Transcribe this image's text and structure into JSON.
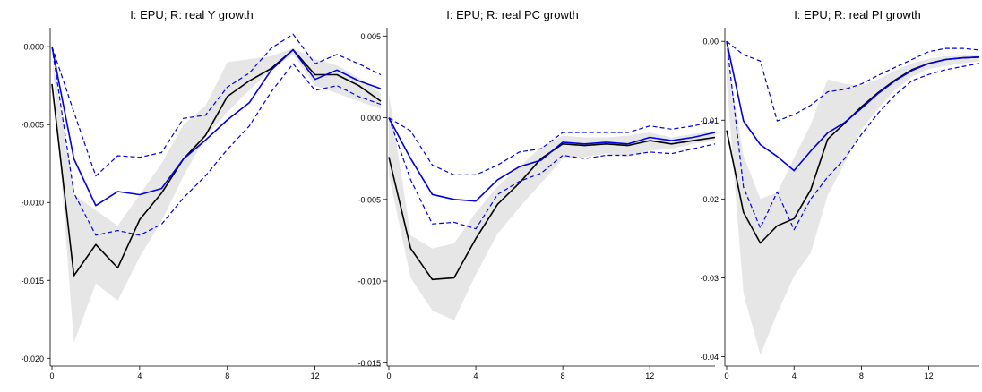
{
  "chart_data": [
    {
      "type": "line",
      "title": "I: EPU; R: real Y growth",
      "x": [
        0,
        1,
        2,
        3,
        4,
        5,
        6,
        7,
        8,
        9,
        10,
        11,
        12,
        13,
        14,
        15
      ],
      "xticks": [
        0,
        4,
        8,
        12
      ],
      "xlim": [
        0,
        15
      ],
      "ylim": [
        -0.0205,
        0.0011
      ],
      "yticks": [
        {
          "value": 0.0,
          "label": "0.000"
        },
        {
          "value": -0.005,
          "label": "-0.005"
        },
        {
          "value": -0.01,
          "label": "-0.010"
        },
        {
          "value": -0.015,
          "label": "-0.015"
        },
        {
          "value": -0.02,
          "label": "-0.020"
        }
      ],
      "band": {
        "lower": [
          -0.0005,
          -0.019,
          -0.0152,
          -0.0163,
          -0.0135,
          -0.0112,
          -0.0083,
          -0.0058,
          -0.0042,
          -0.0028,
          -0.0015,
          -0.0005,
          -0.0025,
          -0.003,
          -0.0035,
          -0.004
        ],
        "upper": [
          -0.0005,
          -0.0095,
          -0.0105,
          -0.0115,
          -0.0095,
          -0.0075,
          -0.005,
          -0.0038,
          -0.001,
          -0.0008,
          -0.0006,
          -0.0001,
          -0.0008,
          -0.0012,
          -0.002,
          -0.003
        ]
      },
      "series": [
        {
          "values": [
            -0.0024,
            -0.0147,
            -0.0127,
            -0.0142,
            -0.0111,
            -0.0094,
            -0.0072,
            -0.0057,
            -0.0032,
            -0.0022,
            -0.0014,
            -0.0002,
            -0.0018,
            -0.0018,
            -0.0025,
            -0.0035
          ],
          "color": "#000000",
          "dash": false
        },
        {
          "values": [
            0.0,
            -0.0072,
            -0.0102,
            -0.0093,
            -0.0095,
            -0.0091,
            -0.0072,
            -0.006,
            -0.0047,
            -0.0036,
            -0.0015,
            -0.0002,
            -0.0021,
            -0.0015,
            -0.0022,
            -0.0027
          ],
          "color": "#0000dd",
          "dash": false
        },
        {
          "values": [
            0.0,
            -0.0042,
            -0.0083,
            -0.007,
            -0.0071,
            -0.0068,
            -0.0046,
            -0.0044,
            -0.0026,
            -0.0017,
            -0.0001,
            0.0008,
            -0.0011,
            -0.0005,
            -0.0011,
            -0.0018
          ],
          "color": "#0000dd",
          "dash": true
        },
        {
          "values": [
            0.0,
            -0.0094,
            -0.0121,
            -0.0118,
            -0.0121,
            -0.0114,
            -0.0097,
            -0.0083,
            -0.0066,
            -0.0051,
            -0.0029,
            -0.0011,
            -0.0028,
            -0.0025,
            -0.0032,
            -0.0037
          ],
          "color": "#0000dd",
          "dash": true
        }
      ]
    },
    {
      "type": "line",
      "title": "I: EPU; R: real PC growth",
      "x": [
        0,
        1,
        2,
        3,
        4,
        5,
        6,
        7,
        8,
        9,
        10,
        11,
        12,
        13,
        14,
        15
      ],
      "xticks": [
        0,
        4,
        8,
        12
      ],
      "xlim": [
        0,
        15
      ],
      "ylim": [
        -0.0152,
        0.0054
      ],
      "yticks": [
        {
          "value": 0.005,
          "label": "0.005"
        },
        {
          "value": 0.0,
          "label": "0.000"
        },
        {
          "value": -0.005,
          "label": "-0.005"
        },
        {
          "value": -0.01,
          "label": "-0.010"
        },
        {
          "value": -0.015,
          "label": "-0.015"
        }
      ],
      "band": {
        "lower": [
          -0.0035,
          -0.0098,
          -0.0118,
          -0.0124,
          -0.0096,
          -0.0071,
          -0.0055,
          -0.004,
          -0.0025,
          -0.0024,
          -0.0022,
          -0.0024,
          -0.002,
          -0.0019,
          -0.0016,
          -0.0014
        ],
        "upper": [
          0.0015,
          -0.0072,
          -0.008,
          -0.0077,
          -0.0058,
          -0.0042,
          -0.003,
          -0.0018,
          -0.0011,
          -0.0012,
          -0.0012,
          -0.0011,
          -0.0009,
          -0.0012,
          -0.001,
          -0.0008
        ]
      },
      "series": [
        {
          "values": [
            -0.0024,
            -0.008,
            -0.0099,
            -0.0098,
            -0.0074,
            -0.0053,
            -0.004,
            -0.0025,
            -0.0016,
            -0.0017,
            -0.0016,
            -0.0017,
            -0.0014,
            -0.0016,
            -0.0014,
            -0.0012
          ],
          "color": "#000000",
          "dash": false
        },
        {
          "values": [
            0.0,
            -0.0025,
            -0.0047,
            -0.005,
            -0.0051,
            -0.0038,
            -0.003,
            -0.0026,
            -0.0015,
            -0.0016,
            -0.0015,
            -0.0016,
            -0.0012,
            -0.0014,
            -0.0012,
            -0.0009
          ],
          "color": "#0000dd",
          "dash": false
        },
        {
          "values": [
            0.0,
            -0.0008,
            -0.0029,
            -0.0035,
            -0.0035,
            -0.0029,
            -0.0021,
            -0.0019,
            -0.0009,
            -0.0009,
            -0.0009,
            -0.0009,
            -0.0005,
            -0.0007,
            -0.0005,
            -0.0002
          ],
          "color": "#0000dd",
          "dash": true
        },
        {
          "values": [
            0.0,
            -0.0038,
            -0.0065,
            -0.0064,
            -0.0068,
            -0.0047,
            -0.0039,
            -0.0034,
            -0.0023,
            -0.0025,
            -0.0023,
            -0.0023,
            -0.0021,
            -0.0022,
            -0.0019,
            -0.0016
          ],
          "color": "#0000dd",
          "dash": true
        }
      ]
    },
    {
      "type": "line",
      "title": "I: EPU; R: real PI growth",
      "x": [
        0,
        1,
        2,
        3,
        4,
        5,
        6,
        7,
        8,
        9,
        10,
        11,
        12,
        13,
        14,
        15
      ],
      "xticks": [
        0,
        4,
        8,
        12
      ],
      "xlim": [
        0,
        15
      ],
      "ylim": [
        -0.0412,
        0.0015
      ],
      "yticks": [
        {
          "value": 0.0,
          "label": "0.00"
        },
        {
          "value": -0.01,
          "label": "-0.01"
        },
        {
          "value": -0.02,
          "label": "-0.02"
        },
        {
          "value": -0.03,
          "label": "-0.03"
        },
        {
          "value": -0.04,
          "label": "-0.04"
        }
      ],
      "band": {
        "lower": [
          -0.005,
          -0.032,
          -0.0398,
          -0.0345,
          -0.0298,
          -0.0268,
          -0.0195,
          -0.0155,
          -0.0112,
          -0.0085,
          -0.0062,
          -0.0045,
          -0.0035,
          -0.0031,
          -0.0028,
          -0.0025
        ],
        "upper": [
          -0.0015,
          -0.0145,
          -0.02,
          -0.0192,
          -0.0148,
          -0.0105,
          -0.0048,
          -0.0054,
          -0.0056,
          -0.0048,
          -0.0037,
          -0.0028,
          -0.0022,
          -0.0019,
          -0.0018,
          -0.0018
        ]
      },
      "series": [
        {
          "values": [
            -0.0113,
            -0.0217,
            -0.0256,
            -0.0234,
            -0.0225,
            -0.0188,
            -0.0124,
            -0.0104,
            -0.0083,
            -0.0065,
            -0.0049,
            -0.0036,
            -0.0028,
            -0.0023,
            -0.0021,
            -0.002
          ],
          "color": "#000000",
          "dash": false
        },
        {
          "values": [
            0.0,
            -0.0101,
            -0.0131,
            -0.0146,
            -0.0164,
            -0.0139,
            -0.0116,
            -0.0103,
            -0.0085,
            -0.0066,
            -0.005,
            -0.0037,
            -0.0028,
            -0.0023,
            -0.0021,
            -0.002
          ],
          "color": "#0000dd",
          "dash": false
        },
        {
          "values": [
            0.0,
            -0.0017,
            -0.0025,
            -0.0101,
            -0.0093,
            -0.0081,
            -0.0064,
            -0.0061,
            -0.0054,
            -0.0043,
            -0.0033,
            -0.0023,
            -0.0013,
            -0.0009,
            -0.0009,
            -0.0011
          ],
          "color": "#0000dd",
          "dash": true
        },
        {
          "values": [
            0.0,
            -0.0185,
            -0.0237,
            -0.0191,
            -0.0239,
            -0.02,
            -0.0172,
            -0.0149,
            -0.0118,
            -0.0091,
            -0.0068,
            -0.005,
            -0.0042,
            -0.0036,
            -0.0032,
            -0.0028
          ],
          "color": "#0000dd",
          "dash": true
        }
      ]
    }
  ]
}
